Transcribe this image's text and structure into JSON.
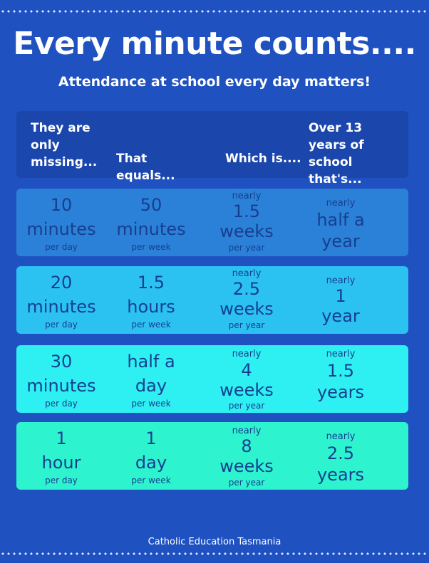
{
  "title": "Every minute counts....",
  "subtitle": "Attendance at school every day matters!",
  "headers": [
    "They are only missing...",
    "That equals...",
    "Which is....",
    "Over 13 years of school that's..."
  ],
  "rows": [
    {
      "color": "#2b80d8",
      "c0": {
        "l1": "10",
        "l2": "minutes",
        "unit": "per day"
      },
      "c1": {
        "l1": "50",
        "l2": "minutes",
        "unit": "per week"
      },
      "c2": {
        "nearly": "nearly",
        "l1": "1.5",
        "l2": "weeks",
        "unit": "per year"
      },
      "c3": {
        "nearly": "nearly",
        "l1": "half a",
        "l2": "year"
      }
    },
    {
      "color": "#2bc2f2",
      "c0": {
        "l1": "20",
        "l2": "minutes",
        "unit": "per day"
      },
      "c1": {
        "l1": "1.5",
        "l2": "hours",
        "unit": "per week"
      },
      "c2": {
        "nearly": "nearly",
        "l1": "2.5",
        "l2": "weeks",
        "unit": "per year"
      },
      "c3": {
        "nearly": "nearly",
        "l1": "1",
        "l2": "year"
      }
    },
    {
      "color": "#2ef0f2",
      "c0": {
        "l1": "30",
        "l2": "minutes",
        "unit": "per day"
      },
      "c1": {
        "l1": "half a",
        "l2": "day",
        "unit": "per week"
      },
      "c2": {
        "nearly": "nearly",
        "l1": "4",
        "l2": "weeks",
        "unit": "per year"
      },
      "c3": {
        "nearly": "nearly",
        "l1": "1.5",
        "l2": "years"
      }
    },
    {
      "color": "#2ef3cf",
      "c0": {
        "l1": "1",
        "l2": "hour",
        "unit": "per day"
      },
      "c1": {
        "l1": "1",
        "l2": "day",
        "unit": "per week"
      },
      "c2": {
        "nearly": "nearly",
        "l1": "8",
        "l2": "weeks",
        "unit": "per year"
      },
      "c3": {
        "nearly": "nearly",
        "l1": "2.5",
        "l2": "years"
      }
    }
  ],
  "footer": "Catholic Education Tasmania"
}
